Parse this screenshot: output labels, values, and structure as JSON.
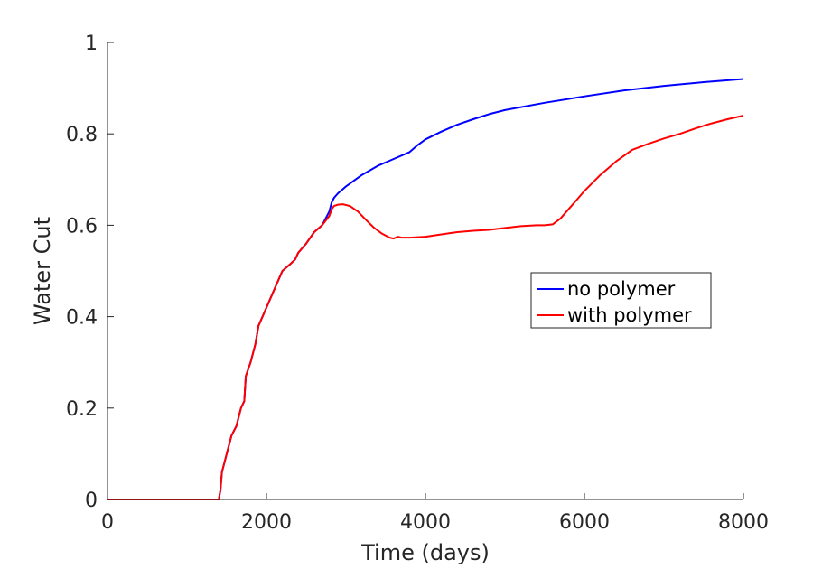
{
  "chart_data": {
    "type": "line",
    "xlabel": "Time (days)",
    "ylabel": "Water Cut",
    "xlim": [
      0,
      8000
    ],
    "ylim": [
      0,
      1
    ],
    "xticks": [
      0,
      2000,
      4000,
      6000,
      8000
    ],
    "xtick_labels": [
      "0",
      "2000",
      "4000",
      "6000",
      "8000"
    ],
    "yticks": [
      0,
      0.2,
      0.4,
      0.6,
      0.8,
      1
    ],
    "ytick_labels": [
      "0",
      "0.2",
      "0.4",
      "0.6",
      "0.8",
      "1"
    ],
    "grid": false,
    "legend_position": "center-right",
    "series": [
      {
        "name": "no polymer",
        "color": "#0000ff",
        "x": [
          0,
          1400,
          1420,
          1440,
          1500,
          1560,
          1620,
          1680,
          1720,
          1740,
          1800,
          1860,
          1900,
          2000,
          2100,
          2200,
          2300,
          2360,
          2400,
          2500,
          2600,
          2700,
          2790,
          2820,
          2850,
          2900,
          3000,
          3200,
          3400,
          3600,
          3800,
          3900,
          4000,
          4200,
          4400,
          4600,
          4800,
          5000,
          5500,
          6000,
          6500,
          7000,
          7500,
          8000
        ],
        "y": [
          0,
          0,
          0.02,
          0.06,
          0.1,
          0.14,
          0.16,
          0.2,
          0.215,
          0.27,
          0.3,
          0.34,
          0.38,
          0.42,
          0.46,
          0.5,
          0.515,
          0.525,
          0.54,
          0.56,
          0.585,
          0.6,
          0.63,
          0.65,
          0.66,
          0.67,
          0.685,
          0.71,
          0.73,
          0.745,
          0.76,
          0.775,
          0.788,
          0.805,
          0.82,
          0.832,
          0.843,
          0.852,
          0.868,
          0.882,
          0.895,
          0.905,
          0.913,
          0.92
        ]
      },
      {
        "name": "with polymer",
        "color": "#ff0000",
        "x": [
          0,
          1400,
          1420,
          1440,
          1500,
          1560,
          1620,
          1680,
          1720,
          1740,
          1800,
          1860,
          1900,
          2000,
          2100,
          2200,
          2300,
          2360,
          2400,
          2500,
          2600,
          2700,
          2790,
          2820,
          2850,
          2900,
          2960,
          3050,
          3150,
          3250,
          3350,
          3450,
          3550,
          3600,
          3650,
          3700,
          3800,
          4000,
          4200,
          4400,
          4600,
          4800,
          5000,
          5200,
          5400,
          5500,
          5600,
          5700,
          5800,
          5900,
          6000,
          6200,
          6400,
          6600,
          6800,
          7000,
          7200,
          7400,
          7600,
          7800,
          8000
        ],
        "y": [
          0,
          0,
          0.02,
          0.06,
          0.1,
          0.14,
          0.16,
          0.2,
          0.215,
          0.27,
          0.3,
          0.34,
          0.38,
          0.42,
          0.46,
          0.5,
          0.515,
          0.525,
          0.54,
          0.56,
          0.585,
          0.6,
          0.62,
          0.635,
          0.642,
          0.645,
          0.646,
          0.642,
          0.63,
          0.612,
          0.595,
          0.582,
          0.573,
          0.571,
          0.575,
          0.573,
          0.573,
          0.575,
          0.58,
          0.585,
          0.588,
          0.59,
          0.594,
          0.598,
          0.6,
          0.6,
          0.602,
          0.615,
          0.635,
          0.655,
          0.675,
          0.71,
          0.74,
          0.765,
          0.778,
          0.79,
          0.8,
          0.812,
          0.823,
          0.832,
          0.84
        ]
      }
    ]
  }
}
